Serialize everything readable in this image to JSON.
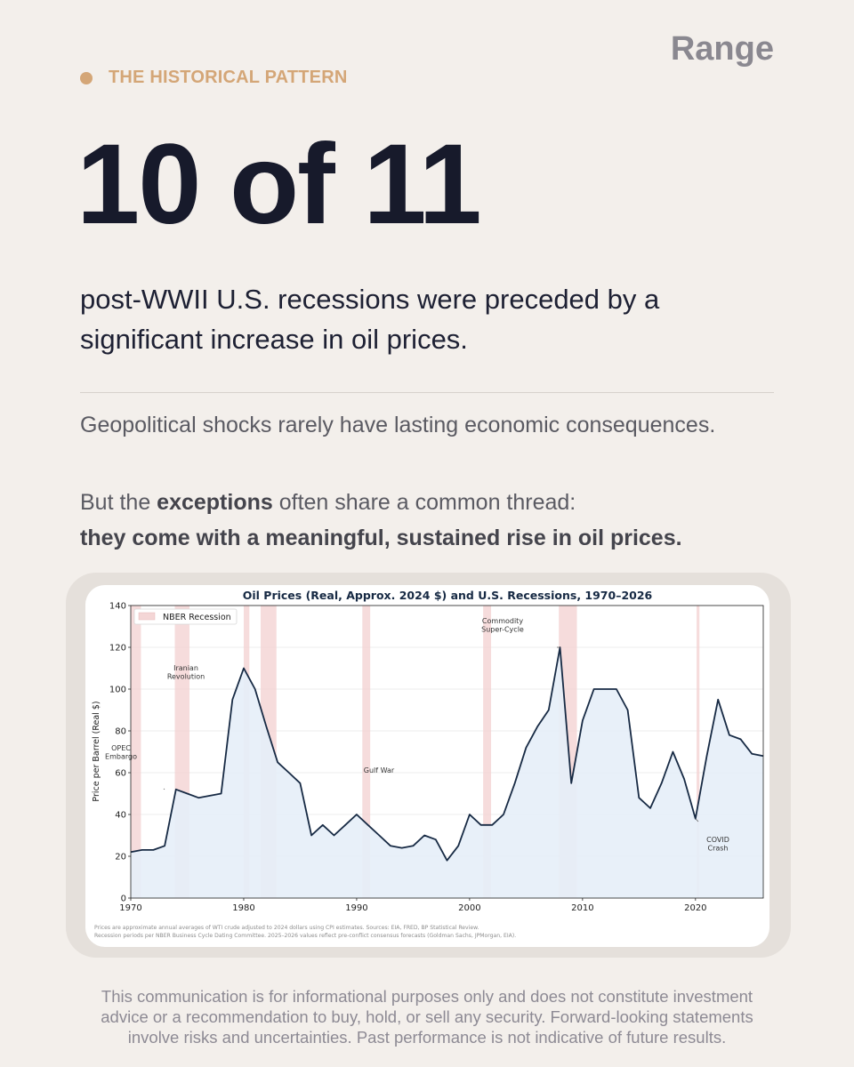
{
  "brand": "Range",
  "eyebrow": "THE HISTORICAL PATTERN",
  "headline": "10 of 11",
  "subhead": "post-WWII U.S. recessions were preceded by a significant increase in oil prices.",
  "body_p1": "Geopolitical shocks rarely have lasting economic consequences.",
  "body_p2": {
    "part1": "But the ",
    "bold1": "exceptions",
    "part2": " often share a common thread:",
    "bold2": "they come with a meaningful, sustained rise in oil prices."
  },
  "disclaimer": "This communication is for informational purposes only and does not constitute investment advice or a recommendation to buy, hold, or sell any security. Forward-looking statements involve risks and uncertainties. Past performance is not indicative of future results.",
  "colors": {
    "line": "#172a44",
    "fill": "#e6eef8",
    "recession": "#f4d6d6",
    "accent": "#d4a677"
  },
  "chart_data": {
    "type": "line",
    "title": "Oil Prices (Real, Approx. 2024 $) and U.S. Recessions, 1970–2026",
    "xlabel": "",
    "ylabel": "Price per Barrel (Real $)",
    "xlim": [
      1970,
      2026
    ],
    "ylim": [
      0,
      140
    ],
    "xticks": [
      1970,
      1980,
      1990,
      2000,
      2010,
      2020
    ],
    "yticks": [
      0,
      20,
      40,
      60,
      80,
      100,
      120,
      140
    ],
    "grid": true,
    "legend": {
      "label": "NBER Recession",
      "position": "top-left"
    },
    "series": [
      {
        "name": "Real oil price",
        "x": [
          1970,
          1971,
          1972,
          1973,
          1974,
          1975,
          1976,
          1977,
          1978,
          1979,
          1980,
          1981,
          1982,
          1983,
          1984,
          1985,
          1986,
          1987,
          1988,
          1989,
          1990,
          1991,
          1992,
          1993,
          1994,
          1995,
          1996,
          1997,
          1998,
          1999,
          2000,
          2001,
          2002,
          2003,
          2004,
          2005,
          2006,
          2007,
          2008,
          2009,
          2010,
          2011,
          2012,
          2013,
          2014,
          2015,
          2016,
          2017,
          2018,
          2019,
          2020,
          2021,
          2022,
          2023,
          2024,
          2025,
          2026
        ],
        "values": [
          22,
          23,
          23,
          25,
          52,
          50,
          48,
          49,
          50,
          95,
          110,
          100,
          82,
          65,
          60,
          55,
          30,
          35,
          30,
          35,
          40,
          35,
          30,
          25,
          24,
          25,
          30,
          28,
          18,
          25,
          40,
          35,
          35,
          40,
          55,
          72,
          82,
          90,
          120,
          55,
          85,
          100,
          100,
          100,
          90,
          48,
          43,
          55,
          70,
          57,
          38,
          68,
          95,
          78,
          76,
          69,
          68
        ]
      }
    ],
    "recessions": [
      {
        "start": 1970.0,
        "end": 1970.9
      },
      {
        "start": 1973.9,
        "end": 1975.2
      },
      {
        "start": 1980.0,
        "end": 1980.5
      },
      {
        "start": 1981.5,
        "end": 1982.9
      },
      {
        "start": 1990.5,
        "end": 1991.2
      },
      {
        "start": 2001.2,
        "end": 2001.9
      },
      {
        "start": 2007.9,
        "end": 2009.5
      },
      {
        "start": 2020.1,
        "end": 2020.35
      }
    ],
    "annotations": [
      {
        "text": [
          "OPEC",
          "Embargo"
        ],
        "x": 1973,
        "y": 52
      },
      {
        "text": [
          "Iranian",
          "Revolution"
        ],
        "x": 1979,
        "y": 95
      },
      {
        "text": [
          "Gulf War"
        ],
        "x": 1990,
        "y": 40
      },
      {
        "text": [
          "Commodity",
          "Super-Cycle"
        ],
        "x": 2008,
        "y": 120
      },
      {
        "text": [
          "COVID",
          "Crash"
        ],
        "x": 2020,
        "y": 38
      }
    ],
    "footnote": [
      "Prices are approximate annual averages of WTI crude adjusted to 2024 dollars using CPI estimates. Sources: EIA, FRED, BP Statistical Review.",
      "Recession periods per NBER Business Cycle Dating Committee. 2025–2026 values reflect pre-conflict consensus forecasts (Goldman Sachs, JPMorgan, EIA)."
    ]
  }
}
